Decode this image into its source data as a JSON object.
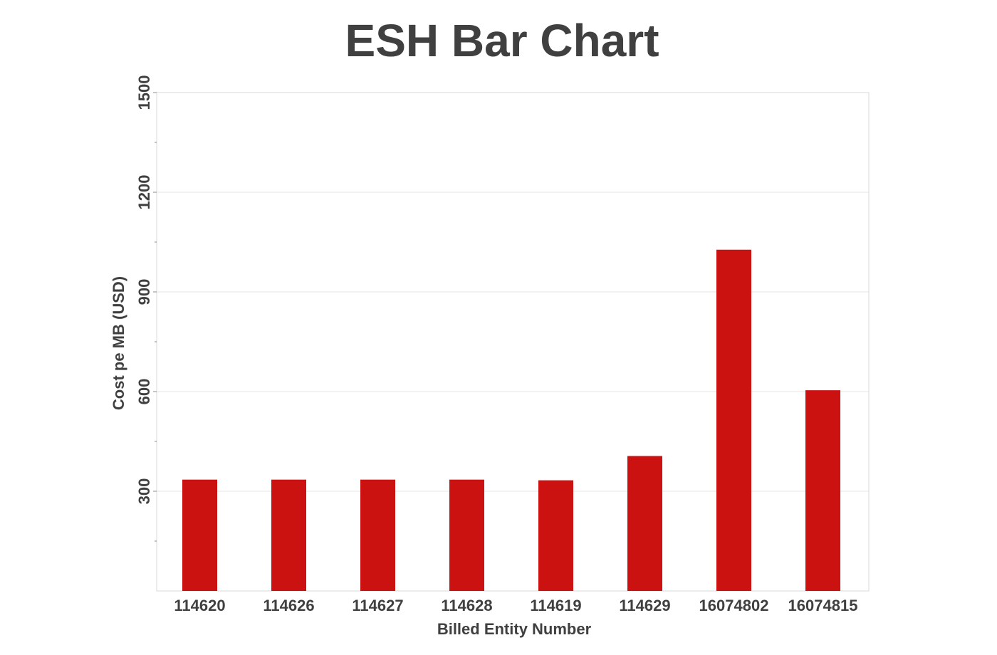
{
  "chart_data": {
    "type": "bar",
    "title": "ESH Bar Chart",
    "xlabel": "Billed Entity Number",
    "ylabel": "Cost pe MB (USD)",
    "categories": [
      "114620",
      "114626",
      "114627",
      "114628",
      "114619",
      "114629",
      "16074802",
      "16074815"
    ],
    "values": [
      335,
      335,
      335,
      335,
      333,
      406,
      1027,
      604
    ],
    "ylim": [
      0,
      1500
    ],
    "yticks": [
      300,
      600,
      900,
      1200,
      1500
    ],
    "grid": true,
    "legend": "none",
    "colors": {
      "bar": "#cc1111",
      "text": "#404040",
      "grid": "#e6e6e6"
    }
  }
}
